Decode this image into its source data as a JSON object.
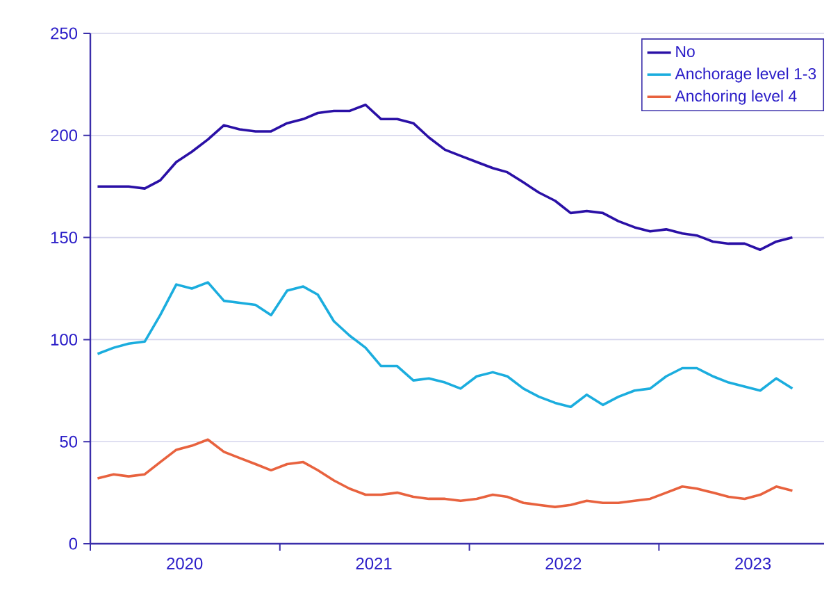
{
  "chart_data": {
    "type": "line",
    "x": [
      "2020-01-15",
      "2020-02-15",
      "2020-03-15",
      "2020-04-15",
      "2020-05-15",
      "2020-06-15",
      "2020-07-15",
      "2020-08-15",
      "2020-09-15",
      "2020-10-15",
      "2020-11-15",
      "2020-12-15",
      "2021-01-15",
      "2021-02-15",
      "2021-03-15",
      "2021-04-15",
      "2021-05-15",
      "2021-06-15",
      "2021-07-15",
      "2021-08-15",
      "2021-09-15",
      "2021-10-15",
      "2021-11-15",
      "2021-12-15",
      "2022-01-15",
      "2022-02-15",
      "2022-03-15",
      "2022-04-15",
      "2022-05-15",
      "2022-06-15",
      "2022-07-15",
      "2022-08-15",
      "2022-09-15",
      "2022-10-15",
      "2022-11-15",
      "2022-12-15",
      "2023-01-15",
      "2023-02-15",
      "2023-03-15",
      "2023-04-15",
      "2023-05-15",
      "2023-06-15",
      "2023-07-15",
      "2023-08-15",
      "2023-09-15"
    ],
    "series": [
      {
        "name": "No",
        "color": "#2a10a6",
        "values": [
          175,
          175,
          175,
          174,
          178,
          187,
          192,
          198,
          205,
          203,
          202,
          202,
          206,
          208,
          211,
          212,
          212,
          215,
          208,
          208,
          206,
          199,
          193,
          190,
          187,
          184,
          182,
          177,
          172,
          168,
          162,
          163,
          162,
          158,
          155,
          153,
          154,
          152,
          151,
          148,
          147,
          147,
          144,
          148,
          150
        ]
      },
      {
        "name": "Anchorage level 1-3",
        "color": "#1badde",
        "values": [
          93,
          96,
          98,
          99,
          112,
          127,
          125,
          128,
          119,
          118,
          117,
          112,
          124,
          126,
          122,
          109,
          102,
          96,
          87,
          87,
          80,
          81,
          79,
          76,
          82,
          84,
          82,
          76,
          72,
          69,
          67,
          73,
          68,
          72,
          75,
          76,
          82,
          86,
          86,
          82,
          79,
          77,
          75,
          81,
          76
        ]
      },
      {
        "name": "Anchoring level 4",
        "color": "#e8623e",
        "values": [
          32,
          34,
          33,
          34,
          40,
          46,
          48,
          51,
          45,
          42,
          39,
          36,
          39,
          40,
          36,
          31,
          27,
          24,
          24,
          25,
          23,
          22,
          22,
          21,
          22,
          24,
          23,
          20,
          19,
          18,
          19,
          21,
          20,
          20,
          21,
          22,
          25,
          28,
          27,
          25,
          23,
          22,
          24,
          28,
          26
        ]
      }
    ],
    "xlim": [
      "2020-01-01",
      "2023-11-15"
    ],
    "xticks": [
      {
        "value": "2020-01-01",
        "label": null
      },
      {
        "value": "2021-01-01",
        "label": null
      },
      {
        "value": "2022-01-01",
        "label": null
      },
      {
        "value": "2023-01-01",
        "label": null
      },
      {
        "value": "2020-07-01",
        "label": "2020"
      },
      {
        "value": "2021-07-01",
        "label": "2021"
      },
      {
        "value": "2022-07-01",
        "label": "2022"
      },
      {
        "value": "2023-07-01",
        "label": "2023"
      }
    ],
    "ylim": [
      0,
      250
    ],
    "yticks": [
      0,
      50,
      100,
      150,
      200,
      250
    ],
    "grid": "y",
    "legend": "top right",
    "marker": "none",
    "line_style": "solid"
  }
}
